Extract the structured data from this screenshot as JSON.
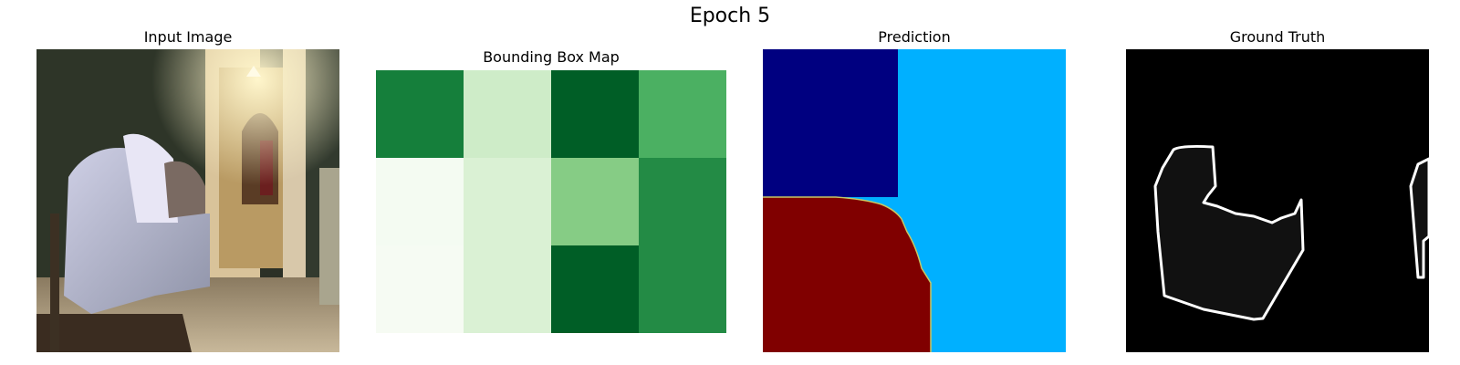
{
  "figure": {
    "title": "Epoch 5"
  },
  "panels": [
    {
      "id": "input",
      "title": "Input Image"
    },
    {
      "id": "bbox",
      "title": "Bounding Box Map"
    },
    {
      "id": "pred",
      "title": "Prediction"
    },
    {
      "id": "gt",
      "title": "Ground Truth"
    }
  ],
  "colors": {
    "prediction_classes": [
      "#000080",
      "#00b0ff",
      "#800000"
    ],
    "ground_truth_fill": "#111111",
    "ground_truth_outline": "#ffffff",
    "ground_truth_background": "#000000"
  },
  "chart_data": {
    "type": "heatmap",
    "title": "Bounding Box Map",
    "rows": 3,
    "cols": 4,
    "colormap": "Greens",
    "values": [
      [
        0.8,
        0.22,
        0.92,
        0.6
      ],
      [
        0.02,
        0.17,
        0.45,
        0.75
      ],
      [
        0.01,
        0.17,
        0.92,
        0.75
      ]
    ]
  }
}
